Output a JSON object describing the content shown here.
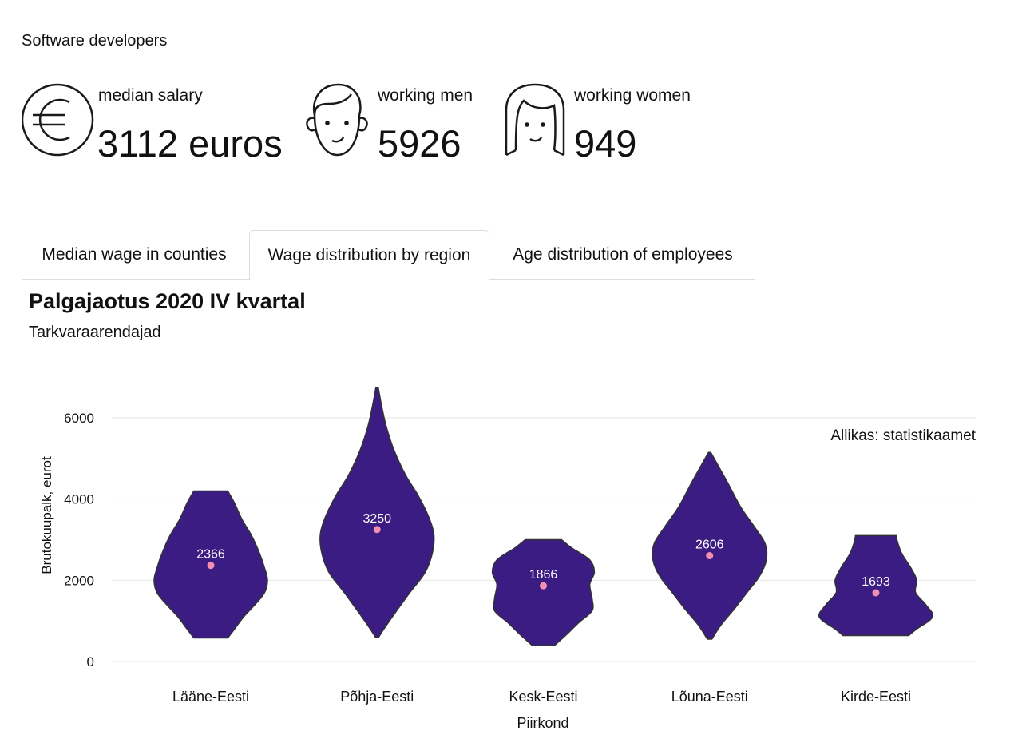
{
  "header": {
    "title": "Software developers"
  },
  "stats": [
    {
      "icon": "euro-icon",
      "label": "median salary",
      "value": "3112 euros"
    },
    {
      "icon": "man-face-icon",
      "label": "working men",
      "value": "5926"
    },
    {
      "icon": "woman-face-icon",
      "label": "working women",
      "value": "949"
    }
  ],
  "tabs": [
    {
      "label": "Median wage in counties",
      "active": false
    },
    {
      "label": "Wage distribution by region",
      "active": true
    },
    {
      "label": "Age distribution of employees",
      "active": false
    }
  ],
  "colors": {
    "violin_fill": "#3b1c82",
    "violin_stroke": "#333333",
    "median_dot": "#f48fb1",
    "grid": "#e6e6e6"
  },
  "chart_data": {
    "type": "violin",
    "title": "Palgajaotus 2020 IV kvartal",
    "subtitle": "Tarkvaraarendajad",
    "caption": "Allikas: statistikaamet",
    "xlabel": "Piirkond",
    "ylabel": "Brutokuupalk, eurot",
    "ylim": [
      0,
      6800
    ],
    "yticks": [
      0,
      2000,
      4000,
      6000
    ],
    "grid": true,
    "categories": [
      "Lääne-Eesti",
      "Põhja-Eesti",
      "Kesk-Eesti",
      "Lõuna-Eesti",
      "Kirde-Eesti"
    ],
    "medians": [
      2366,
      3250,
      1866,
      2606,
      1693
    ],
    "median_labels": [
      "2366",
      "3250",
      "1866",
      "2606",
      "1693"
    ],
    "ranges": [
      [
        580,
        4200
      ],
      [
        600,
        6750
      ],
      [
        400,
        3000
      ],
      [
        550,
        5150
      ],
      [
        640,
        3100
      ]
    ],
    "density_profiles": [
      [
        [
          580,
          0.3
        ],
        [
          800,
          0.42
        ],
        [
          1100,
          0.58
        ],
        [
          1400,
          0.78
        ],
        [
          1700,
          0.95
        ],
        [
          2000,
          1.0
        ],
        [
          2300,
          0.95
        ],
        [
          2700,
          0.85
        ],
        [
          3100,
          0.72
        ],
        [
          3500,
          0.55
        ],
        [
          3900,
          0.42
        ],
        [
          4200,
          0.3
        ]
      ],
      [
        [
          600,
          0.03
        ],
        [
          800,
          0.12
        ],
        [
          1200,
          0.32
        ],
        [
          1700,
          0.58
        ],
        [
          2200,
          0.85
        ],
        [
          2700,
          0.98
        ],
        [
          3150,
          1.0
        ],
        [
          3600,
          0.9
        ],
        [
          4100,
          0.72
        ],
        [
          4600,
          0.5
        ],
        [
          5200,
          0.3
        ],
        [
          5800,
          0.16
        ],
        [
          6300,
          0.08
        ],
        [
          6750,
          0.02
        ]
      ],
      [
        [
          400,
          0.2
        ],
        [
          650,
          0.4
        ],
        [
          950,
          0.62
        ],
        [
          1250,
          0.86
        ],
        [
          1550,
          0.86
        ],
        [
          1900,
          0.82
        ],
        [
          2200,
          0.9
        ],
        [
          2500,
          0.82
        ],
        [
          2800,
          0.5
        ],
        [
          3000,
          0.32
        ]
      ],
      [
        [
          550,
          0.04
        ],
        [
          900,
          0.2
        ],
        [
          1300,
          0.44
        ],
        [
          1700,
          0.66
        ],
        [
          2100,
          0.88
        ],
        [
          2500,
          1.0
        ],
        [
          2900,
          0.98
        ],
        [
          3300,
          0.8
        ],
        [
          3800,
          0.55
        ],
        [
          4400,
          0.32
        ],
        [
          4900,
          0.12
        ],
        [
          5150,
          0.02
        ]
      ],
      [
        [
          640,
          0.58
        ],
        [
          800,
          0.72
        ],
        [
          1100,
          1.0
        ],
        [
          1400,
          0.88
        ],
        [
          1700,
          0.7
        ],
        [
          2000,
          0.72
        ],
        [
          2300,
          0.62
        ],
        [
          2650,
          0.46
        ],
        [
          2950,
          0.38
        ],
        [
          3100,
          0.36
        ]
      ]
    ]
  }
}
